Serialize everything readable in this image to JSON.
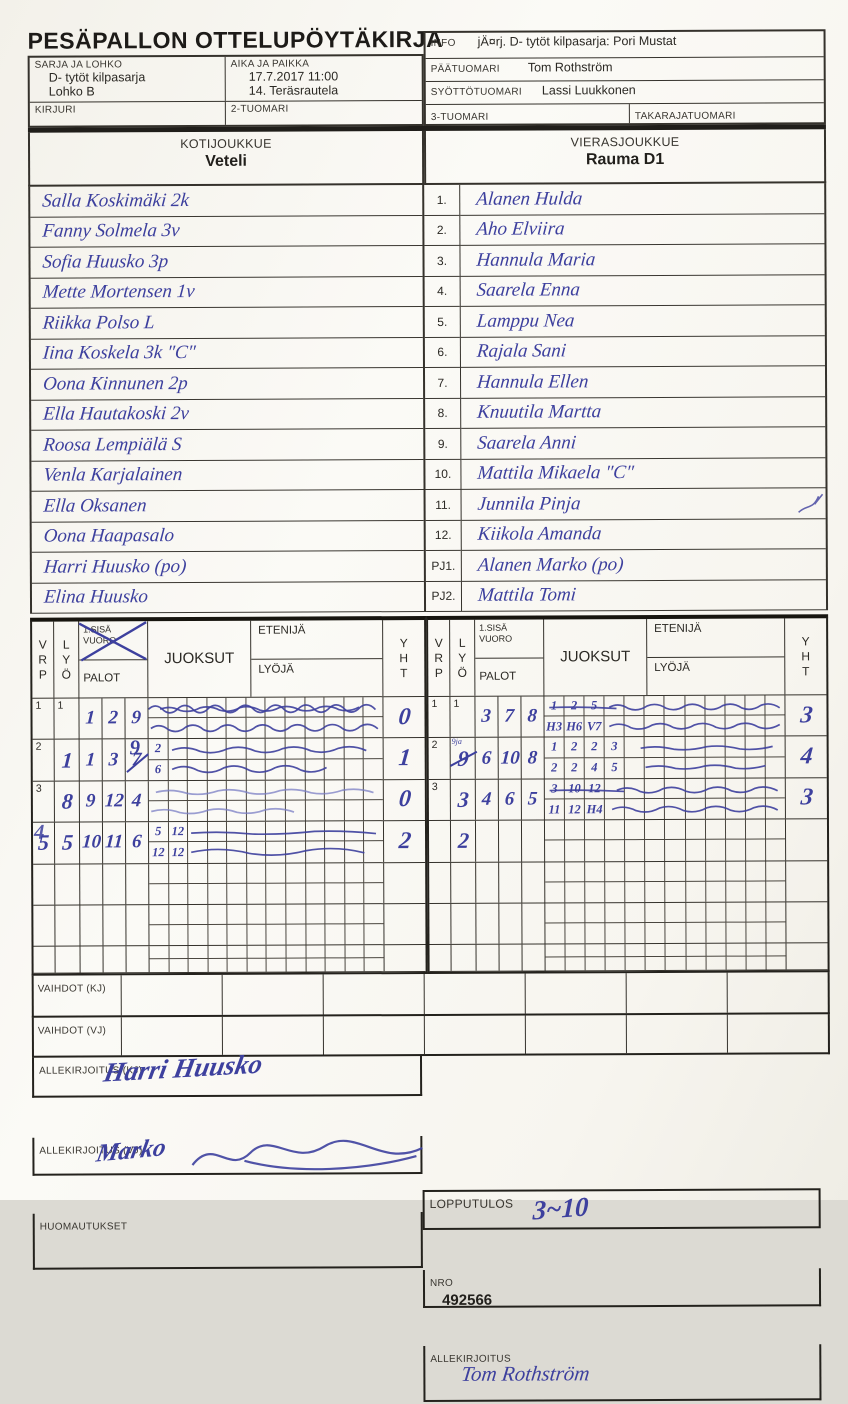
{
  "title": "PESÄPALLON OTTELUPÖYTÄKIRJA",
  "header": {
    "sarja": {
      "label": "SARJA JA LOHKO",
      "line1": "D- tytöt kilpasarja",
      "line2": "Lohko B"
    },
    "aika": {
      "label": "AIKA JA PAIKKA",
      "line1": "17.7.2017 11:00",
      "line2": "14. Teräsrautela"
    },
    "kirjuri": {
      "label": "KIRJURI",
      "value": ""
    },
    "tuomari2": {
      "label": "2-TUOMARI",
      "value": ""
    },
    "info": {
      "label": "INFO",
      "value": "jÄ¤rj. D- tytöt kilpasarja: Pori Mustat"
    },
    "paatuomari": {
      "label": "PÄÄTUOMARI",
      "value": "Tom Rothström"
    },
    "syottotuomari": {
      "label": "SYÖTTÖTUOMARI",
      "value": "Lassi Luukkonen"
    },
    "tuomari3": {
      "label": "3-TUOMARI",
      "value": ""
    },
    "takaraja": {
      "label": "TAKARAJATUOMARI",
      "value": ""
    }
  },
  "teams": {
    "home": {
      "label": "KOTIJOUKKUE",
      "name": "Veteli"
    },
    "away": {
      "label": "VIERASJOUKKUE",
      "name": "Rauma D1"
    }
  },
  "roster_numbers": [
    "1.",
    "2.",
    "3.",
    "4.",
    "5.",
    "6.",
    "7.",
    "8.",
    "9.",
    "10.",
    "11.",
    "12.",
    "PJ1.",
    "PJ2."
  ],
  "home_players": [
    "Salla Koskimäki 2k",
    "Fanny Solmela 3v",
    "Sofia Huusko 3p",
    "Mette Mortensen 1v",
    "Riikka Polso L",
    "Iina Koskela 3k  \"C\"",
    "Oona Kinnunen 2p",
    "Ella Hautakoski 2v",
    "Roosa Lempiälä S",
    "Venla Karjalainen",
    "Ella Oksanen",
    "Oona Haapasalo",
    "Harri Huusko (po)",
    "Elina Huusko"
  ],
  "away_players": [
    "Alanen Hulda",
    "Aho Elviira",
    "Hannula Maria",
    "Saarela Enna",
    "Lamppu Nea",
    "Rajala Sani",
    "Hannula Ellen",
    "Knuutila Martta",
    "Saarela Anni",
    "Mattila Mikaela \"C\"",
    "Junnila Pinja",
    "Kiikola Amanda",
    "Alanen Marko (po)",
    "Mattila Tomi"
  ],
  "scoregrid": {
    "labels": {
      "vrp": [
        "V",
        "R",
        "P"
      ],
      "lyo": [
        "L",
        "Y",
        "Ö"
      ],
      "sisa1": "1.SISÄ",
      "sisa2": "VUORO",
      "palot": "PALOT",
      "juoksut": "JUOKSUT",
      "etenija": "ETENIJÄ",
      "lyoja": "LYÖJÄ",
      "yht": [
        "Y",
        "H",
        "T"
      ]
    },
    "left_crossed_out": true,
    "left_rows": [
      {
        "vrp": "1",
        "vrp_printed": true,
        "lyo": "1",
        "lyo_printed": true,
        "palot": [
          "1",
          "2",
          "9"
        ],
        "top": [],
        "bottom": [],
        "yht": "0",
        "scr": [
          [
            "top",
            0.0,
            0.97,
            7,
            15
          ],
          [
            "bottom",
            0.01,
            0.98,
            6,
            13
          ],
          [
            "top",
            0.05,
            0.9,
            4,
            10
          ]
        ]
      },
      {
        "vrp": "2",
        "vrp_printed": true,
        "lyo": "1",
        "palot": [
          "1",
          "3",
          "7"
        ],
        "palot_over": {
          "idx": 2,
          "ch": "9"
        },
        "top": [
          "2"
        ],
        "bottom": [
          "6"
        ],
        "yht": "1",
        "scr": [
          [
            "top",
            0.1,
            0.93,
            5,
            7
          ],
          [
            "bottom",
            0.1,
            0.76,
            6,
            6
          ]
        ]
      },
      {
        "vrp": "3",
        "vrp_printed": true,
        "lyo": "8",
        "palot": [
          "9",
          "12",
          "4"
        ],
        "top": [],
        "bottom": [],
        "yht": "0",
        "light": true,
        "scr": [
          [
            "top",
            0.03,
            0.96,
            4,
            7
          ],
          [
            "bottom",
            0.01,
            0.62,
            4,
            5
          ]
        ]
      },
      {
        "vrp": "5",
        "vrp_over": "4",
        "lyo": "5",
        "palot": [
          "10",
          "11",
          "6"
        ],
        "top": [
          "5",
          "12"
        ],
        "bottom": [
          "12",
          "12"
        ],
        "yht": "2",
        "scr": [
          [
            "top",
            0.18,
            0.97,
            2,
            3
          ],
          [
            "bottom",
            0.18,
            0.92,
            6,
            3
          ]
        ]
      }
    ],
    "right_rows": [
      {
        "vrp": "1",
        "vrp_printed": true,
        "lyo": "1",
        "lyo_printed": true,
        "palot": [
          "3",
          "7",
          "8"
        ],
        "top": [
          "1",
          "2",
          "5"
        ],
        "bottom": [
          "H3",
          "H6",
          "V7"
        ],
        "yht": "3",
        "scr": [
          [
            "top",
            0.02,
            0.3,
            1,
            1
          ],
          [
            "top",
            0.27,
            0.98,
            5,
            9
          ],
          [
            "bottom",
            0.27,
            0.98,
            5,
            8
          ]
        ]
      },
      {
        "vrp": "2",
        "vrp_printed": true,
        "lyo": "9",
        "lyo_struck": true,
        "lyo_note": "9ja",
        "palot": [
          "6",
          "10",
          "8"
        ],
        "top": [
          "1",
          "2",
          "2",
          "3"
        ],
        "bottom": [
          "2",
          "2",
          "4",
          "5"
        ],
        "yht": "4",
        "scr": [
          [
            "top",
            0.4,
            0.95,
            3,
            4
          ],
          [
            "bottom",
            0.42,
            0.92,
            3,
            4
          ]
        ]
      },
      {
        "vrp": "3",
        "vrp_printed": true,
        "lyo": "3",
        "palot": [
          "4",
          "6",
          "5"
        ],
        "top": [
          "3",
          "10",
          "12"
        ],
        "bottom": [
          "11",
          "12",
          "H4"
        ],
        "yht": "3",
        "scr": [
          [
            "top",
            0.02,
            0.33,
            1,
            1
          ],
          [
            "top",
            0.3,
            0.97,
            5,
            7
          ],
          [
            "bottom",
            0.28,
            0.97,
            5,
            7
          ]
        ]
      },
      {
        "vrp": "",
        "lyo": "2",
        "palot": [
          "",
          "",
          ""
        ],
        "top": [],
        "bottom": [],
        "yht": "",
        "scr": []
      }
    ],
    "empty_rows": 3
  },
  "vaihdot": {
    "kj": "VAIHDOT (KJ)",
    "vj": "VAIHDOT (VJ)"
  },
  "bottom": {
    "allekirjoitus_kj": {
      "label": "ALLEKIRJOITUS (KJ)",
      "signature": "Harri Huusko"
    },
    "allekirjoitus_vj": {
      "label": "ALLEKIRJOITUS (VJ)",
      "signature": "Marko"
    },
    "huomautukset": {
      "label": "HUOMAUTUKSET",
      "value": ""
    },
    "lopputulos": {
      "label": "LOPPUTULOS",
      "value": "3~10"
    },
    "nro": {
      "label": "NRO",
      "value": "492566"
    },
    "allekirjoitus": {
      "label": "ALLEKIRJOITUS",
      "value": "Tom Rothström"
    }
  },
  "ink_color": "#3d409e"
}
